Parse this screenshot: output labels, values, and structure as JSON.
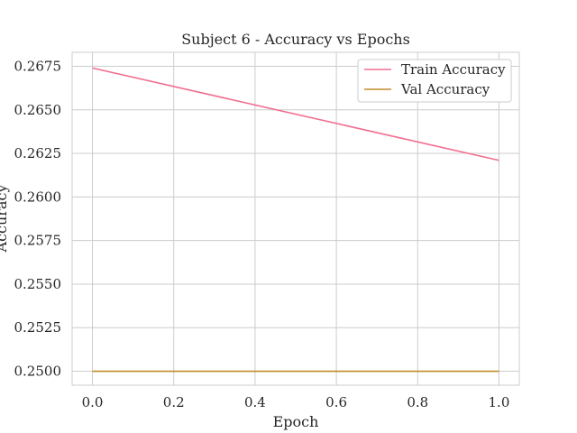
{
  "chart_data": {
    "type": "line",
    "title": "Subject 6 - Accuracy vs Epochs",
    "xlabel": "Epoch",
    "ylabel": "Accuracy",
    "xlim": [
      -0.05,
      1.05
    ],
    "ylim": [
      0.2492,
      0.2683
    ],
    "x_ticks": [
      0.0,
      0.2,
      0.4,
      0.6,
      0.8,
      1.0
    ],
    "y_ticks": [
      0.25,
      0.2525,
      0.255,
      0.2575,
      0.26,
      0.2625,
      0.265,
      0.2675
    ],
    "grid": true,
    "legend_position": "top-right",
    "series": [
      {
        "name": "Train Accuracy",
        "color": "#f07090",
        "x": [
          0,
          1
        ],
        "y": [
          0.2674,
          0.2621
        ]
      },
      {
        "name": "Val Accuracy",
        "color": "#c08a2a",
        "x": [
          0,
          1
        ],
        "y": [
          0.25,
          0.25
        ]
      }
    ]
  }
}
